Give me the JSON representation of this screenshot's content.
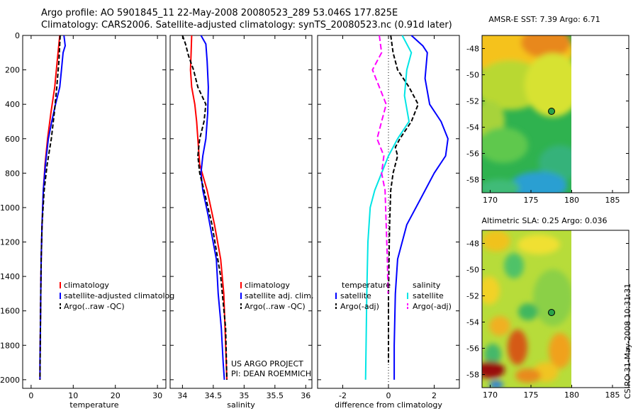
{
  "header": {
    "line1": "Argo profile: AO 5901845_11 22-May-2008 20080523_289 53.046S 177.825E",
    "line2": "Climatology: CARS2006. Satellite-adjusted climatology: synTS_20080523.nc (0.91d later)"
  },
  "credit": {
    "project": "US ARGO PROJECT",
    "pi": "PI: DEAN ROEMMICH",
    "stamp": "CSIRO 31-May-2008 10:31:31"
  },
  "colors": {
    "climatology": "#ff0000",
    "satellite": "#0000ff",
    "argo": "#000000",
    "salinity_satellite": "#00e5e5",
    "salinity_argo": "#ff00ff"
  },
  "chart_data": [
    {
      "type": "line",
      "id": "temperature",
      "xlabel": "temperature",
      "ylabel": "",
      "xlim": [
        -2,
        32
      ],
      "ylim": [
        2050,
        0
      ],
      "xticks": [
        0,
        10,
        20,
        30
      ],
      "yticks": [
        0,
        200,
        400,
        600,
        800,
        1000,
        1200,
        1400,
        1600,
        1800,
        2000
      ],
      "legend": [
        "climatology",
        "satellite-adjusted climatolog",
        "Argo(..raw -QC)"
      ],
      "series": [
        {
          "name": "climatology",
          "color": "#ff0000",
          "dash": "",
          "x": [
            6.8,
            6.6,
            6.2,
            5.6,
            4.7,
            3.9,
            3.3,
            2.9,
            2.6,
            2.4,
            2.3,
            2.2,
            2.1,
            2.1
          ],
          "y": [
            0,
            50,
            150,
            300,
            450,
            600,
            750,
            900,
            1100,
            1300,
            1500,
            1700,
            1900,
            2000
          ]
        },
        {
          "name": "satellite-adjusted climatolog",
          "color": "#0000ff",
          "dash": "",
          "x": [
            7.8,
            8.1,
            7.6,
            7.2,
            6.8,
            5.8,
            4.9,
            4.1,
            3.4,
            2.9,
            2.6,
            2.4,
            2.3,
            2.2,
            2.1,
            2.1
          ],
          "y": [
            0,
            60,
            100,
            200,
            300,
            400,
            500,
            600,
            750,
            900,
            1100,
            1300,
            1500,
            1700,
            1900,
            2000
          ]
        },
        {
          "name": "Argo(..raw -QC)",
          "color": "#000000",
          "dash": "6,3",
          "x": [
            6.9,
            6.8,
            6.6,
            6.1,
            5.5,
            4.8,
            3.8,
            3.1,
            2.6,
            2.4,
            2.3,
            2.2,
            2.1
          ],
          "y": [
            0,
            50,
            150,
            300,
            450,
            600,
            750,
            900,
            1100,
            1300,
            1500,
            1700,
            2000
          ]
        }
      ]
    },
    {
      "type": "line",
      "id": "salinity",
      "xlabel": "salinity",
      "ylabel": "",
      "xlim": [
        33.8,
        36.1
      ],
      "ylim": [
        2050,
        0
      ],
      "xticks": [
        34,
        34.5,
        35,
        35.5,
        36
      ],
      "yticks": [],
      "legend": [
        "climatology",
        "satellite adj. clim.",
        "Argo(..raw -QC)"
      ],
      "series": [
        {
          "name": "climatology",
          "color": "#ff0000",
          "dash": "",
          "x": [
            34.15,
            34.14,
            34.13,
            34.15,
            34.2,
            34.23,
            34.25,
            34.28,
            34.4,
            34.52,
            34.62,
            34.67,
            34.7,
            34.72
          ],
          "y": [
            0,
            100,
            200,
            300,
            400,
            500,
            600,
            750,
            900,
            1100,
            1300,
            1500,
            1800,
            2000
          ]
        },
        {
          "name": "satellite adj. clim.",
          "color": "#0000ff",
          "dash": "",
          "x": [
            34.3,
            34.38,
            34.4,
            34.42,
            34.41,
            34.38,
            34.33,
            34.3,
            34.33,
            34.42,
            34.55,
            34.58,
            34.63,
            34.66,
            34.68
          ],
          "y": [
            0,
            50,
            150,
            300,
            450,
            600,
            700,
            800,
            900,
            1050,
            1300,
            1500,
            1700,
            1900,
            2000
          ]
        },
        {
          "name": "Argo(..raw -QC)",
          "color": "#000000",
          "dash": "6,3",
          "x": [
            34.0,
            34.05,
            34.1,
            34.18,
            34.25,
            34.38,
            34.35,
            34.28,
            34.25,
            34.28,
            34.35,
            34.48,
            34.62,
            34.7,
            34.72
          ],
          "y": [
            0,
            50,
            120,
            200,
            300,
            400,
            500,
            600,
            700,
            800,
            900,
            1100,
            1400,
            1700,
            2000
          ]
        }
      ]
    },
    {
      "type": "line",
      "id": "difference",
      "xlabel": "difference from climatology",
      "ylabel": "",
      "xlim": [
        -3.1,
        3.1
      ],
      "ylim": [
        2050,
        0
      ],
      "xticks": [
        -2,
        0,
        2
      ],
      "yticks": [],
      "legend_temperature_title": "temperature",
      "legend_salinity_title": "salinity",
      "legend": [
        "satellite",
        "Argo(-adj)",
        "satellite",
        "Argo(-adj)"
      ],
      "series": [
        {
          "name": "temperature satellite",
          "color": "#0000ff",
          "dash": "",
          "x": [
            1.0,
            1.5,
            1.7,
            1.6,
            1.8,
            2.3,
            2.6,
            2.5,
            2.0,
            1.4,
            0.8,
            0.4,
            0.3,
            0.25,
            0.25
          ],
          "y": [
            0,
            60,
            100,
            250,
            400,
            500,
            600,
            700,
            800,
            950,
            1100,
            1300,
            1500,
            1800,
            2000
          ]
        },
        {
          "name": "temperature Argo(-adj)",
          "color": "#000000",
          "dash": "6,3",
          "x": [
            0.1,
            0.2,
            0.4,
            0.9,
            1.3,
            1.0,
            0.5,
            0.3,
            0.4,
            0.2,
            0.1,
            0.05,
            0.0,
            0.0
          ],
          "y": [
            0,
            100,
            200,
            300,
            400,
            500,
            600,
            650,
            700,
            800,
            900,
            1100,
            1500,
            1900
          ]
        },
        {
          "name": "salinity satellite",
          "color": "#00e5e5",
          "dash": "",
          "x": [
            0.6,
            1.0,
            0.8,
            0.7,
            0.9,
            0.4,
            0.0,
            -0.3,
            -0.6,
            -0.8,
            -0.9,
            -0.95,
            -0.98,
            -1.0
          ],
          "y": [
            0,
            100,
            200,
            350,
            500,
            600,
            700,
            800,
            900,
            1000,
            1200,
            1500,
            1800,
            2000
          ]
        },
        {
          "name": "salinity Argo(-adj)",
          "color": "#ff00ff",
          "dash": "8,4",
          "x": [
            -0.4,
            -0.3,
            -0.7,
            -0.4,
            -0.1,
            -0.3,
            -0.5,
            -0.2,
            -0.3,
            -0.15,
            -0.1,
            -0.05,
            -0.02
          ],
          "y": [
            0,
            100,
            200,
            300,
            400,
            500,
            600,
            700,
            800,
            900,
            1100,
            1300,
            1500
          ]
        }
      ]
    },
    {
      "type": "heatmap",
      "id": "sst_map",
      "title": "AMSR-E SST: 7.39 Argo: 6.71",
      "xlim": [
        169,
        187
      ],
      "ylim": [
        -59,
        -47
      ],
      "xticks": [
        170,
        175,
        180,
        185
      ],
      "yticks": [
        -48,
        -50,
        -52,
        -54,
        -56,
        -58
      ],
      "data_xlim": [
        169,
        180
      ],
      "argo_position": {
        "lon": 177.825,
        "lat": -53.046
      }
    },
    {
      "type": "heatmap",
      "id": "sla_map",
      "title": "Altimetric SLA: 0.25 Argo: 0.036",
      "xlim": [
        169,
        187
      ],
      "ylim": [
        -59,
        -47
      ],
      "xticks": [
        170,
        175,
        180,
        185
      ],
      "yticks": [
        -48,
        -50,
        -52,
        -54,
        -56,
        -58
      ],
      "data_xlim": [
        169,
        180
      ],
      "argo_position": {
        "lon": 177.825,
        "lat": -53.046
      }
    }
  ]
}
